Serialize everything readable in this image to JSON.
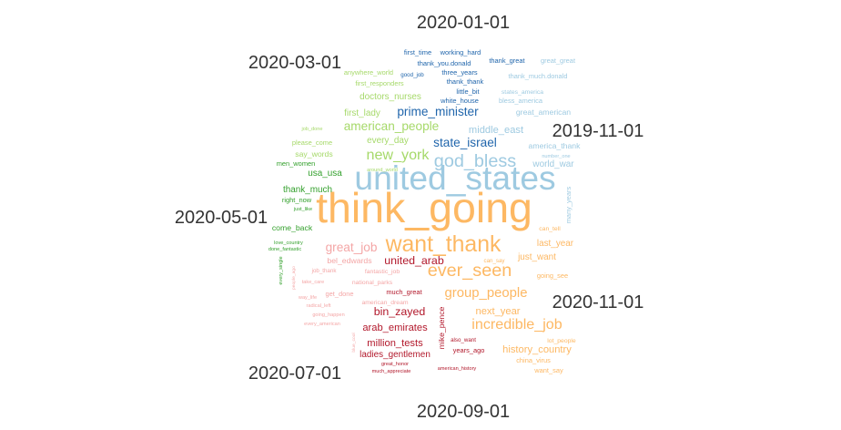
{
  "chart_data": {
    "type": "comparison-wordcloud",
    "title": "",
    "groups": [
      {
        "name": "2020-01-01",
        "color": "#2166ac"
      },
      {
        "name": "2019-11-01",
        "color": "#9ecae1"
      },
      {
        "name": "2020-11-01",
        "color": "#fdb863"
      },
      {
        "name": "2020-09-01",
        "color": "#b2182b"
      },
      {
        "name": "2020-07-01",
        "color": "#f4a6a6"
      },
      {
        "name": "2020-05-01",
        "color": "#33a02c"
      },
      {
        "name": "2020-03-01",
        "color": "#a6d96a"
      }
    ],
    "words": [
      {
        "text": "first_time",
        "group": "2020-01-01",
        "weight": 12
      },
      {
        "text": "working_hard",
        "group": "2020-01-01",
        "weight": 12
      },
      {
        "text": "thank_you.donald",
        "group": "2020-01-01",
        "weight": 12
      },
      {
        "text": "thank_great",
        "group": "2020-01-01",
        "weight": 12
      },
      {
        "text": "good_job",
        "group": "2020-01-01",
        "weight": 10
      },
      {
        "text": "three_years",
        "group": "2020-01-01",
        "weight": 12
      },
      {
        "text": "thank_thank",
        "group": "2020-01-01",
        "weight": 12
      },
      {
        "text": "little_bit",
        "group": "2020-01-01",
        "weight": 12
      },
      {
        "text": "white_house",
        "group": "2020-01-01",
        "weight": 12
      },
      {
        "text": "prime_minister",
        "group": "2020-01-01",
        "weight": 22
      },
      {
        "text": "state_israel",
        "group": "2020-01-01",
        "weight": 22
      },
      {
        "text": "great_great",
        "group": "2019-11-01",
        "weight": 12
      },
      {
        "text": "thank_much.donald",
        "group": "2019-11-01",
        "weight": 12
      },
      {
        "text": "states_america",
        "group": "2019-11-01",
        "weight": 11
      },
      {
        "text": "bless_america",
        "group": "2019-11-01",
        "weight": 12
      },
      {
        "text": "great_american",
        "group": "2019-11-01",
        "weight": 14
      },
      {
        "text": "middle_east",
        "group": "2019-11-01",
        "weight": 18
      },
      {
        "text": "america_thank",
        "group": "2019-11-01",
        "weight": 14
      },
      {
        "text": "number_one",
        "group": "2019-11-01",
        "weight": 9
      },
      {
        "text": "god_bless",
        "group": "2019-11-01",
        "weight": 32
      },
      {
        "text": "world_war",
        "group": "2019-11-01",
        "weight": 16
      },
      {
        "text": "united_states",
        "group": "2019-11-01",
        "weight": 60
      },
      {
        "text": "many_years",
        "group": "2019-11-01",
        "weight": 12
      },
      {
        "text": "think_going",
        "group": "2020-11-01",
        "weight": 75
      },
      {
        "text": "want_thank",
        "group": "2020-11-01",
        "weight": 40
      },
      {
        "text": "ever_seen",
        "group": "2020-11-01",
        "weight": 32
      },
      {
        "text": "can_tell",
        "group": "2020-11-01",
        "weight": 11
      },
      {
        "text": "last_year",
        "group": "2020-11-01",
        "weight": 16
      },
      {
        "text": "just_want",
        "group": "2020-11-01",
        "weight": 16
      },
      {
        "text": "can_say",
        "group": "2020-11-01",
        "weight": 10
      },
      {
        "text": "going_see",
        "group": "2020-11-01",
        "weight": 12
      },
      {
        "text": "group_people",
        "group": "2020-11-01",
        "weight": 24
      },
      {
        "text": "next_year",
        "group": "2020-11-01",
        "weight": 18
      },
      {
        "text": "incredible_job",
        "group": "2020-11-01",
        "weight": 26
      },
      {
        "text": "lot_people",
        "group": "2020-11-01",
        "weight": 11
      },
      {
        "text": "history_country",
        "group": "2020-11-01",
        "weight": 18
      },
      {
        "text": "china_virus",
        "group": "2020-11-01",
        "weight": 12
      },
      {
        "text": "want_say",
        "group": "2020-11-01",
        "weight": 12
      },
      {
        "text": "united_arab",
        "group": "2020-09-01",
        "weight": 20
      },
      {
        "text": "much_great",
        "group": "2020-09-01",
        "weight": 12
      },
      {
        "text": "bin_zayed",
        "group": "2020-09-01",
        "weight": 20
      },
      {
        "text": "arab_emirates",
        "group": "2020-09-01",
        "weight": 18
      },
      {
        "text": "mike_pence",
        "group": "2020-09-01",
        "weight": 14
      },
      {
        "text": "million_tests",
        "group": "2020-09-01",
        "weight": 18
      },
      {
        "text": "also_want",
        "group": "2020-09-01",
        "weight": 10
      },
      {
        "text": "years_ago",
        "group": "2020-09-01",
        "weight": 12
      },
      {
        "text": "ladies_gentlemen",
        "group": "2020-09-01",
        "weight": 16
      },
      {
        "text": "great_honor",
        "group": "2020-09-01",
        "weight": 9
      },
      {
        "text": "much_appreciate",
        "group": "2020-09-01",
        "weight": 9
      },
      {
        "text": "american_history",
        "group": "2020-09-01",
        "weight": 9
      },
      {
        "text": "great_job",
        "group": "2020-07-01",
        "weight": 22
      },
      {
        "text": "bel_edwards",
        "group": "2020-07-01",
        "weight": 14
      },
      {
        "text": "fantastic_job",
        "group": "2020-07-01",
        "weight": 11
      },
      {
        "text": "job_thank",
        "group": "2020-07-01",
        "weight": 10
      },
      {
        "text": "national_parks",
        "group": "2020-07-01",
        "weight": 11
      },
      {
        "text": "take_care",
        "group": "2020-07-01",
        "weight": 9
      },
      {
        "text": "get_done",
        "group": "2020-07-01",
        "weight": 12
      },
      {
        "text": "way_life",
        "group": "2020-07-01",
        "weight": 9
      },
      {
        "text": "american_dream",
        "group": "2020-07-01",
        "weight": 11
      },
      {
        "text": "radical_left",
        "group": "2020-07-01",
        "weight": 9
      },
      {
        "text": "going_happen",
        "group": "2020-07-01",
        "weight": 9
      },
      {
        "text": "every_american",
        "group": "2020-07-01",
        "weight": 9
      },
      {
        "text": "blue_cool",
        "group": "2020-07-01",
        "weight": 8
      },
      {
        "text": "people_ago",
        "group": "2020-07-01",
        "weight": 8
      },
      {
        "text": "men_women",
        "group": "2020-05-01",
        "weight": 12
      },
      {
        "text": "usa_usa",
        "group": "2020-05-01",
        "weight": 16
      },
      {
        "text": "thank_much",
        "group": "2020-05-01",
        "weight": 16
      },
      {
        "text": "right_now",
        "group": "2020-05-01",
        "weight": 12
      },
      {
        "text": "just_like",
        "group": "2020-05-01",
        "weight": 9
      },
      {
        "text": "come_back",
        "group": "2020-05-01",
        "weight": 14
      },
      {
        "text": "love_country",
        "group": "2020-05-01",
        "weight": 9
      },
      {
        "text": "done_fantastic",
        "group": "2020-05-01",
        "weight": 9
      },
      {
        "text": "every_single",
        "group": "2020-05-01",
        "weight": 9
      },
      {
        "text": "anywhere_world",
        "group": "2020-03-01",
        "weight": 12
      },
      {
        "text": "first_responders",
        "group": "2020-03-01",
        "weight": 12
      },
      {
        "text": "doctors_nurses",
        "group": "2020-03-01",
        "weight": 16
      },
      {
        "text": "first_lady",
        "group": "2020-03-01",
        "weight": 16
      },
      {
        "text": "american_people",
        "group": "2020-03-01",
        "weight": 22
      },
      {
        "text": "job_done",
        "group": "2020-03-01",
        "weight": 9
      },
      {
        "text": "every_day",
        "group": "2020-03-01",
        "weight": 16
      },
      {
        "text": "please_come",
        "group": "2020-03-01",
        "weight": 12
      },
      {
        "text": "new_york",
        "group": "2020-03-01",
        "weight": 26
      },
      {
        "text": "say_words",
        "group": "2020-03-01",
        "weight": 14
      },
      {
        "text": "around_world",
        "group": "2020-03-01",
        "weight": 9
      }
    ]
  }
}
